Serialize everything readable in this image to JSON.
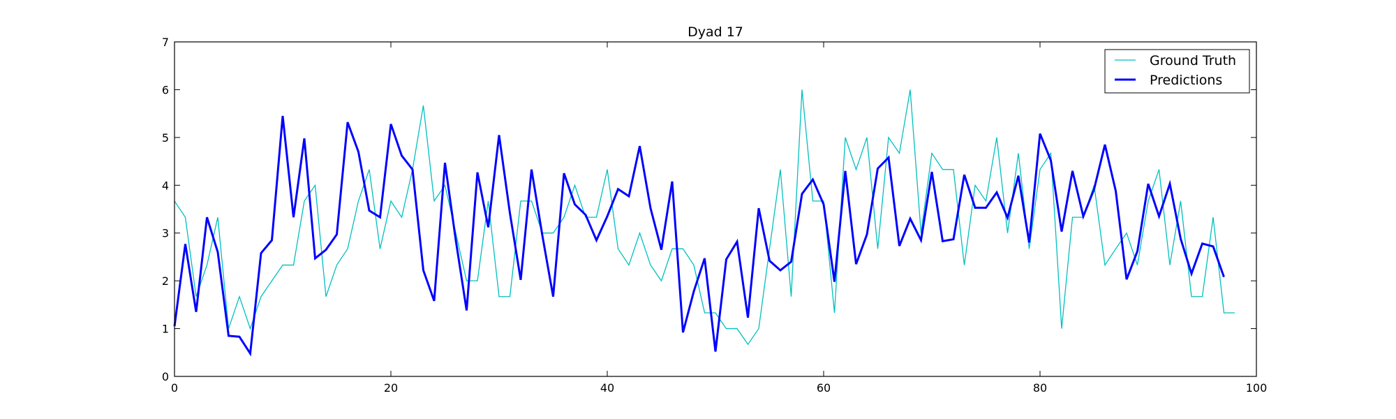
{
  "chart_data": {
    "type": "line",
    "title": "Dyad 17",
    "xlabel": "",
    "ylabel": "",
    "xlim": [
      0,
      100
    ],
    "ylim": [
      0,
      7
    ],
    "xticks": [
      0,
      20,
      40,
      60,
      80,
      100
    ],
    "yticks": [
      0,
      1,
      2,
      3,
      4,
      5,
      6,
      7
    ],
    "grid": false,
    "legend_position": "top-right",
    "series": [
      {
        "name": "Ground Truth",
        "color": "#00bfbf",
        "style": "thin",
        "x": [
          0,
          1,
          2,
          3,
          4,
          5,
          6,
          7,
          8,
          9,
          10,
          11,
          12,
          13,
          14,
          15,
          16,
          17,
          18,
          19,
          20,
          21,
          22,
          23,
          24,
          25,
          26,
          27,
          28,
          29,
          30,
          31,
          32,
          33,
          34,
          35,
          36,
          37,
          38,
          39,
          40,
          41,
          42,
          43,
          44,
          45,
          46,
          47,
          48,
          49,
          50,
          51,
          52,
          53,
          54,
          55,
          56,
          57,
          58,
          59,
          60,
          61,
          62,
          63,
          64,
          65,
          66,
          67,
          68,
          69,
          70,
          71,
          72,
          73,
          74,
          75,
          76,
          77,
          78,
          79,
          80,
          81,
          82,
          83,
          84,
          85,
          86,
          87,
          88,
          89,
          90,
          91,
          92,
          93,
          94,
          95,
          96,
          97,
          98
        ],
        "values": [
          3.67,
          3.33,
          1.67,
          2.33,
          3.33,
          1.0,
          1.67,
          1.0,
          1.67,
          2.0,
          2.33,
          2.33,
          3.67,
          4.0,
          1.67,
          2.33,
          2.67,
          3.67,
          4.33,
          2.67,
          3.67,
          3.33,
          4.33,
          5.67,
          3.67,
          4.0,
          3.0,
          2.0,
          2.0,
          3.67,
          1.67,
          1.67,
          3.67,
          3.67,
          3.0,
          3.0,
          3.33,
          4.0,
          3.33,
          3.33,
          4.33,
          2.67,
          2.33,
          3.0,
          2.33,
          2.0,
          2.67,
          2.67,
          2.33,
          1.33,
          1.33,
          1.0,
          1.0,
          0.67,
          1.0,
          2.67,
          4.33,
          1.67,
          6.0,
          3.67,
          3.67,
          1.33,
          5.0,
          4.33,
          5.0,
          2.67,
          5.0,
          4.67,
          6.0,
          3.0,
          4.67,
          4.33,
          4.33,
          2.33,
          4.0,
          3.67,
          5.0,
          3.0,
          4.67,
          2.67,
          4.33,
          4.67,
          1.0,
          3.33,
          3.33,
          4.0,
          2.33,
          2.67,
          3.0,
          2.33,
          3.67,
          4.33,
          2.33,
          3.67,
          1.67,
          1.67,
          3.33,
          1.33,
          1.33
        ]
      },
      {
        "name": "Predictions",
        "color": "#0000ff",
        "style": "thick",
        "x": [
          0,
          1,
          2,
          3,
          4,
          5,
          6,
          7,
          8,
          9,
          10,
          11,
          12,
          13,
          14,
          15,
          16,
          17,
          18,
          19,
          20,
          21,
          22,
          23,
          24,
          25,
          26,
          27,
          28,
          29,
          30,
          31,
          32,
          33,
          34,
          35,
          36,
          37,
          38,
          39,
          40,
          41,
          42,
          43,
          44,
          45,
          46,
          47,
          48,
          49,
          50,
          51,
          52,
          53,
          54,
          55,
          56,
          57,
          58,
          59,
          60,
          61,
          62,
          63,
          64,
          65,
          66,
          67,
          68,
          69,
          70,
          71,
          72,
          73,
          74,
          75,
          76,
          77,
          78,
          79,
          80,
          81,
          82,
          83,
          84,
          85,
          86,
          87,
          88,
          89,
          90,
          91,
          92,
          93,
          94,
          95,
          96,
          97
        ],
        "values": [
          1.05,
          2.77,
          1.35,
          3.33,
          2.6,
          0.85,
          0.83,
          0.48,
          2.58,
          2.85,
          5.45,
          3.33,
          4.98,
          2.47,
          2.65,
          2.97,
          5.32,
          4.7,
          3.47,
          3.33,
          5.28,
          4.62,
          4.33,
          2.22,
          1.58,
          4.47,
          2.85,
          1.38,
          4.27,
          3.12,
          5.05,
          3.42,
          2.02,
          4.33,
          2.95,
          1.67,
          4.25,
          3.6,
          3.38,
          2.85,
          3.35,
          3.92,
          3.77,
          4.82,
          3.52,
          2.65,
          4.08,
          0.92,
          1.78,
          2.47,
          0.52,
          2.45,
          2.82,
          1.23,
          3.52,
          2.42,
          2.22,
          2.4,
          3.82,
          4.12,
          3.6,
          1.98,
          4.3,
          2.35,
          2.97,
          4.35,
          4.58,
          2.73,
          3.3,
          2.85,
          4.28,
          2.83,
          2.87,
          4.22,
          3.53,
          3.53,
          3.85,
          3.32,
          4.2,
          2.8,
          5.08,
          4.52,
          3.03,
          4.3,
          3.35,
          3.92,
          4.85,
          3.88,
          2.03,
          2.62,
          4.03,
          3.35,
          4.03,
          2.88,
          2.15,
          2.78,
          2.72,
          2.08
        ]
      }
    ]
  }
}
